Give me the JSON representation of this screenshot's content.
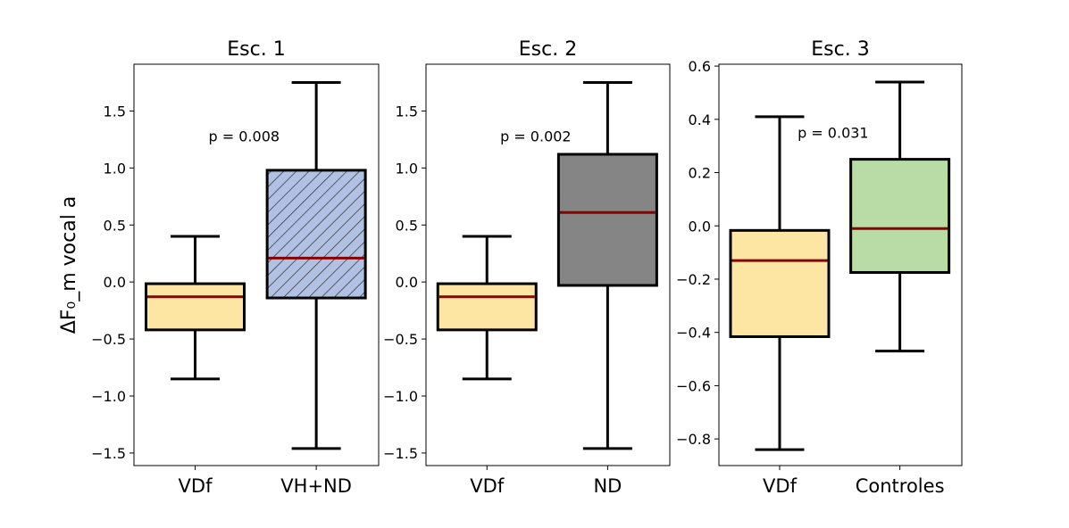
{
  "chart_data": {
    "type": "box",
    "ylabel": "ΔF₀_m vocal a",
    "colors": {
      "median": "#8b0000",
      "vdf": "#fde6a4",
      "vh_nd": "#b0c1e3",
      "nd": "#858585",
      "controles": "#b9dba5",
      "edge": "#000000"
    },
    "panels": [
      {
        "title": "Esc. 1",
        "ylim": [
          -1.61,
          1.91
        ],
        "yticks": [
          -1.5,
          -1.0,
          -0.5,
          0.0,
          0.5,
          1.0,
          1.5
        ],
        "ytick_labels": [
          "−1.5",
          "−1.0",
          "−0.5",
          "0.0",
          "0.5",
          "1.0",
          "1.5"
        ],
        "annotation": {
          "text": "p = 0.008",
          "x": 0.45,
          "y": 1.28
        },
        "boxes": [
          {
            "label": "VDf",
            "whislo": -0.85,
            "q1": -0.42,
            "med": -0.13,
            "q3": -0.015,
            "whishi": 0.4,
            "color": "#fde6a4",
            "hatch": false
          },
          {
            "label": "VH+ND",
            "whislo": -1.46,
            "q1": -0.14,
            "med": 0.21,
            "q3": 0.98,
            "whishi": 1.75,
            "color": "#b0c1e3",
            "hatch": true
          }
        ]
      },
      {
        "title": "Esc. 2",
        "ylim": [
          -1.61,
          1.91
        ],
        "yticks": [
          -1.5,
          -1.0,
          -0.5,
          0.0,
          0.5,
          1.0,
          1.5
        ],
        "ytick_labels": [
          "−1.5",
          "−1.0",
          "−0.5",
          "0.0",
          "0.5",
          "1.0",
          "1.5"
        ],
        "annotation": {
          "text": "p = 0.002",
          "x": 0.45,
          "y": 1.28
        },
        "boxes": [
          {
            "label": "VDf",
            "whislo": -0.85,
            "q1": -0.42,
            "med": -0.13,
            "q3": -0.015,
            "whishi": 0.4,
            "color": "#fde6a4",
            "hatch": false
          },
          {
            "label": "ND",
            "whislo": -1.46,
            "q1": -0.03,
            "med": 0.61,
            "q3": 1.12,
            "whishi": 1.75,
            "color": "#858585",
            "hatch": false
          }
        ]
      },
      {
        "title": "Esc. 3",
        "ylim": [
          -0.9,
          0.607
        ],
        "yticks": [
          -0.8,
          -0.6,
          -0.4,
          -0.2,
          0.0,
          0.2,
          0.4,
          0.6
        ],
        "ytick_labels": [
          "−0.8",
          "−0.6",
          "−0.4",
          "−0.2",
          "0.0",
          "0.2",
          "0.4",
          "0.6"
        ],
        "annotation": {
          "text": "p = 0.031",
          "x": 0.47,
          "y": 0.35
        },
        "boxes": [
          {
            "label": "VDf",
            "whislo": -0.84,
            "q1": -0.416,
            "med": -0.13,
            "q3": -0.017,
            "whishi": 0.41,
            "color": "#fde6a4",
            "hatch": false
          },
          {
            "label": "Controles",
            "whislo": -0.47,
            "q1": -0.175,
            "med": -0.01,
            "q3": 0.25,
            "whishi": 0.54,
            "color": "#b9dba5",
            "hatch": false
          }
        ]
      }
    ]
  }
}
